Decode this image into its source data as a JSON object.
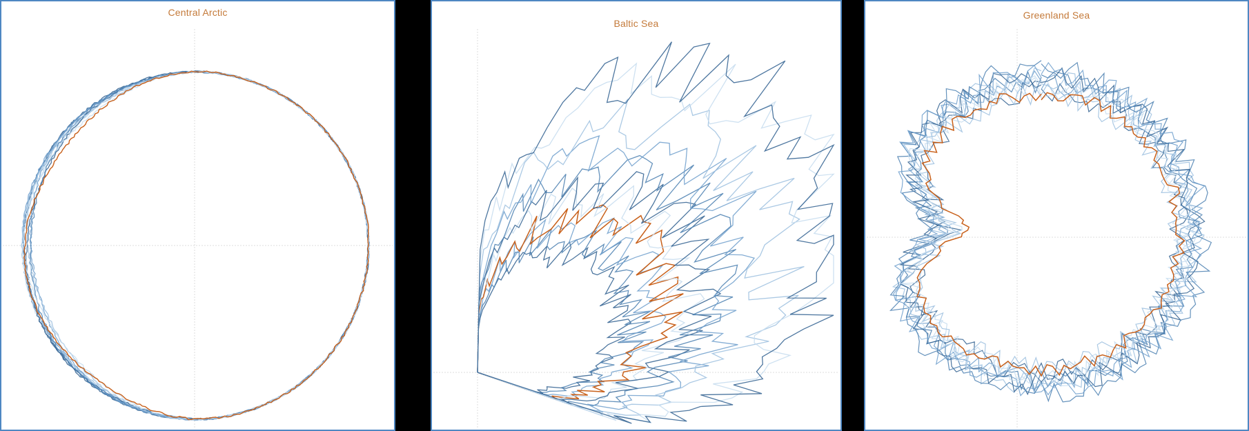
{
  "chart_data": [
    {
      "type": "line",
      "title": "Central Arctic",
      "coordinate_system": "polar",
      "gridlines": "axes-only",
      "series_colors": [
        "#2f5f8f",
        "#4a7fb0",
        "#6f9fcc",
        "#9cc0df",
        "#c6dcee",
        "#c8601a"
      ],
      "highlight_color": "#c8601a"
    },
    {
      "type": "line",
      "title": "Baltic Sea",
      "coordinate_system": "polar",
      "gridlines": "axes-only",
      "series_colors": [
        "#2f5f8f",
        "#4a7fb0",
        "#6f9fcc",
        "#9cc0df",
        "#c6dcee",
        "#c8601a"
      ],
      "highlight_color": "#c8601a"
    },
    {
      "type": "line",
      "title": "Greenland Sea",
      "coordinate_system": "polar",
      "gridlines": "axes-only",
      "series_colors": [
        "#2f5f8f",
        "#4a7fb0",
        "#6f9fcc",
        "#9cc0df",
        "#c6dcee",
        "#c8601a"
      ],
      "highlight_color": "#c8601a"
    }
  ]
}
